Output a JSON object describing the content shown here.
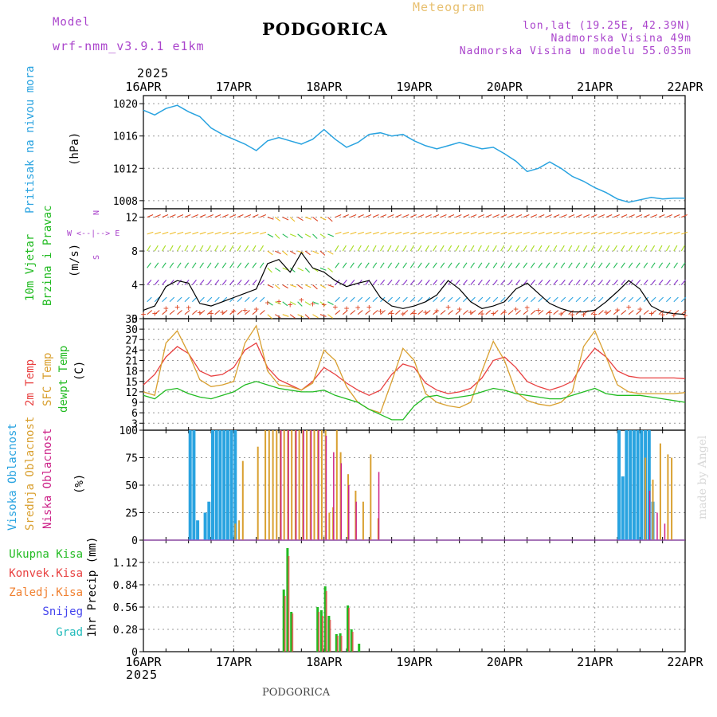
{
  "header": {
    "model_label": "Model",
    "model_name": "wrf-nmm_v3.9.1 e1km",
    "title": "PODGORICA",
    "meteogram": "Meteogram",
    "lonlat": "lon,lat (19.25E, 42.39N)",
    "elevation": "Nadmorska Visina 49m",
    "model_elevation": "Nadmorska Visina u modelu 55.035m",
    "year_top": "2025",
    "year_bottom": "2025",
    "footer_title": "PODGORICA",
    "watermark": "made by Angel"
  },
  "colors": {
    "pressure": "#29a3e0",
    "wind_label": "#22bb22",
    "temp2m": "#e84040",
    "sfc": "#d9a030",
    "dewpt": "#22bb22",
    "high_cloud": "#29a3e0",
    "mid_cloud": "#d9a030",
    "low_cloud": "#cc2288",
    "total_precip": "#22bb22",
    "conv_precip": "#e84040",
    "ice_precip": "#f08030",
    "snow": "#4444ee",
    "hail": "#22bbbb",
    "compass": "#aa44cc"
  },
  "panel_labels": {
    "pressure": [
      "Pritisak na nivou mora",
      "(hPa)"
    ],
    "wind": [
      "10m Vjetar",
      "Brzina i Pravac",
      "(m/s)"
    ],
    "compass": [
      "N",
      "W <--|--> E",
      "S"
    ],
    "temp": [
      "2m Temp",
      "SFC Temp",
      "dewpt Temp",
      "(C)"
    ],
    "cloud": [
      "Visoka Oblacnost",
      "Srednja Oblacnost",
      "Niska Oblacnost",
      "(%)"
    ],
    "precip_legend": [
      "Ukupna Kisa",
      "Konvek.Kisa",
      "Zaledj.Kisa",
      "Snijeg",
      "Grad"
    ],
    "precip_unit": "1hr Precip (mm)"
  },
  "chart_data": [
    {
      "type": "line",
      "panel": "pressure",
      "x_labels": [
        "16APR",
        "17APR",
        "18APR",
        "19APR",
        "20APR",
        "21APR",
        "22APR"
      ],
      "ylim": [
        1007,
        1021
      ],
      "yticks": [
        1008,
        1012,
        1016,
        1020
      ],
      "series": [
        {
          "name": "Pritisak na nivou mora",
          "x": [
            0,
            3,
            6,
            9,
            12,
            15,
            18,
            21,
            24,
            27,
            30,
            33,
            36,
            39,
            42,
            45,
            48,
            51,
            54,
            57,
            60,
            63,
            66,
            69,
            72,
            75,
            78,
            81,
            84,
            87,
            90,
            93,
            96,
            99,
            102,
            105,
            108,
            111,
            114,
            117,
            120,
            123,
            126,
            129,
            132,
            135,
            138,
            141,
            144
          ],
          "values": [
            1019.2,
            1018.6,
            1019.4,
            1019.8,
            1019.0,
            1018.4,
            1017.0,
            1016.2,
            1015.6,
            1015.0,
            1014.2,
            1015.4,
            1015.8,
            1015.4,
            1015.0,
            1015.6,
            1016.8,
            1015.6,
            1014.6,
            1015.2,
            1016.2,
            1016.4,
            1016.0,
            1016.2,
            1015.4,
            1014.8,
            1014.4,
            1014.8,
            1015.2,
            1014.8,
            1014.4,
            1014.6,
            1013.8,
            1012.9,
            1011.6,
            1012.0,
            1012.8,
            1012.0,
            1011.0,
            1010.4,
            1009.6,
            1009.0,
            1008.2,
            1007.8,
            1008.1,
            1008.4,
            1008.2,
            1008.3,
            1008.3
          ]
        }
      ]
    },
    {
      "type": "line",
      "panel": "wind",
      "ylim": [
        0,
        13
      ],
      "yticks": [
        0,
        4,
        8,
        12
      ],
      "series": [
        {
          "name": "10m Vjetar",
          "x": [
            0,
            3,
            6,
            9,
            12,
            15,
            18,
            21,
            24,
            27,
            30,
            33,
            36,
            39,
            42,
            45,
            48,
            51,
            54,
            57,
            60,
            63,
            66,
            69,
            72,
            75,
            78,
            81,
            84,
            87,
            90,
            93,
            96,
            99,
            102,
            105,
            108,
            111,
            114,
            117,
            120,
            123,
            126,
            129,
            132,
            135,
            138,
            141,
            144
          ],
          "values": [
            1.0,
            1.5,
            3.8,
            4.5,
            4.2,
            1.8,
            1.5,
            2.0,
            2.5,
            3.0,
            3.5,
            6.5,
            7.0,
            5.5,
            7.8,
            6.0,
            5.5,
            4.5,
            3.8,
            4.2,
            4.5,
            2.5,
            1.5,
            1.2,
            1.5,
            2.0,
            2.8,
            4.5,
            3.5,
            2.0,
            1.2,
            1.5,
            2.0,
            3.5,
            4.2,
            3.0,
            1.8,
            1.2,
            0.8,
            0.8,
            1.0,
            2.0,
            3.2,
            4.5,
            3.5,
            1.5,
            0.8,
            0.6,
            0.5
          ]
        }
      ]
    },
    {
      "type": "line",
      "panel": "temperature",
      "ylim": [
        1,
        33
      ],
      "yticks": [
        3,
        6,
        9,
        12,
        15,
        18,
        21,
        24,
        27,
        30,
        33
      ],
      "series": [
        {
          "name": "2m Temp",
          "x": [
            0,
            3,
            6,
            9,
            12,
            15,
            18,
            21,
            24,
            27,
            30,
            33,
            36,
            39,
            42,
            45,
            48,
            51,
            54,
            57,
            60,
            63,
            66,
            69,
            72,
            75,
            78,
            81,
            84,
            87,
            90,
            93,
            96,
            99,
            102,
            105,
            108,
            111,
            114,
            117,
            120,
            123,
            126,
            129,
            132,
            135,
            138,
            141,
            144
          ],
          "values": [
            14,
            17,
            22,
            25,
            23,
            18,
            16.5,
            17,
            19,
            24,
            26,
            19,
            15.5,
            14,
            12.5,
            15,
            19,
            17,
            14.5,
            12.5,
            11,
            12.5,
            17,
            20,
            19,
            14.5,
            12.5,
            11.5,
            12,
            13,
            16,
            21,
            22,
            19,
            15,
            13.5,
            12.5,
            13.5,
            15,
            20.5,
            24.5,
            22,
            18,
            16.5,
            16,
            16,
            16,
            16,
            15.8
          ]
        },
        {
          "name": "SFC Temp",
          "x": [
            0,
            3,
            6,
            9,
            12,
            15,
            18,
            21,
            24,
            27,
            30,
            33,
            36,
            39,
            42,
            45,
            48,
            51,
            54,
            57,
            60,
            63,
            66,
            69,
            72,
            75,
            78,
            81,
            84,
            87,
            90,
            93,
            96,
            99,
            102,
            105,
            108,
            111,
            114,
            117,
            120,
            123,
            126,
            129,
            132,
            135,
            138,
            141,
            144
          ],
          "values": [
            12,
            11,
            26,
            29.5,
            23,
            15.5,
            13.5,
            14,
            15,
            26,
            31,
            18,
            14,
            13.5,
            12.5,
            14.5,
            24,
            21,
            13.5,
            9,
            7,
            6,
            15,
            24.5,
            21,
            11.5,
            9,
            8,
            7.5,
            9,
            18,
            26.5,
            21,
            12,
            9.5,
            8.5,
            8,
            9,
            12,
            25,
            29.5,
            22,
            14,
            12,
            11.5,
            11.5,
            11.5,
            11.5,
            11.8
          ]
        },
        {
          "name": "dewpt Temp",
          "x": [
            0,
            3,
            6,
            9,
            12,
            15,
            18,
            21,
            24,
            27,
            30,
            33,
            36,
            39,
            42,
            45,
            48,
            51,
            54,
            57,
            60,
            63,
            66,
            69,
            72,
            75,
            78,
            81,
            84,
            87,
            90,
            93,
            96,
            99,
            102,
            105,
            108,
            111,
            114,
            117,
            120,
            123,
            126,
            129,
            132,
            135,
            138,
            141,
            144
          ],
          "values": [
            11,
            10,
            12.5,
            13,
            11.5,
            10.5,
            10,
            11,
            12,
            14,
            15,
            14,
            13,
            12.5,
            12,
            12,
            12.5,
            11,
            10,
            9,
            7,
            5.5,
            4,
            4,
            8,
            10.5,
            11,
            10,
            10.5,
            11,
            12,
            13,
            12.5,
            11.5,
            11,
            10.5,
            10,
            10,
            11,
            12,
            13,
            11.5,
            11,
            11,
            11,
            10.5,
            10,
            9.5,
            9
          ]
        }
      ]
    },
    {
      "type": "bar",
      "panel": "cloud",
      "ylim": [
        0,
        100
      ],
      "yticks": [
        0,
        25,
        50,
        75,
        100
      ],
      "series": [
        {
          "name": "Visoka Oblacnost",
          "x": [
            12,
            13,
            14,
            16,
            17,
            18,
            19,
            20,
            21,
            22,
            23,
            24,
            126,
            127,
            128,
            129,
            130,
            131,
            132,
            133,
            134,
            135
          ],
          "values": [
            100,
            100,
            18,
            25,
            35,
            100,
            100,
            100,
            100,
            100,
            100,
            100,
            100,
            58,
            100,
            100,
            100,
            100,
            100,
            100,
            100,
            35
          ]
        },
        {
          "name": "Srednja Oblacnost",
          "x": [
            24,
            25,
            26,
            30,
            32,
            33,
            34,
            35,
            36,
            37,
            38,
            39,
            40,
            41,
            42,
            43,
            44,
            45,
            46,
            47,
            48,
            49,
            50,
            51,
            52,
            54,
            56,
            58,
            60,
            62,
            133,
            135,
            137,
            139,
            140
          ],
          "values": [
            15,
            18,
            72,
            85,
            100,
            100,
            100,
            100,
            100,
            100,
            100,
            100,
            100,
            100,
            100,
            100,
            100,
            100,
            100,
            100,
            100,
            25,
            30,
            100,
            80,
            60,
            45,
            35,
            78,
            20,
            75,
            55,
            88,
            78,
            75
          ]
        },
        {
          "name": "Niska Oblacnost",
          "x": [
            36,
            38,
            40,
            42,
            44,
            46,
            48,
            50,
            52,
            54,
            56,
            58,
            62,
            64,
            66,
            67,
            69,
            134,
            136,
            138
          ],
          "values": [
            100,
            100,
            100,
            100,
            100,
            100,
            95,
            80,
            70,
            50,
            35,
            8,
            62,
            8,
            8,
            8,
            8,
            45,
            25,
            15
          ]
        }
      ]
    },
    {
      "type": "bar",
      "panel": "precip",
      "ylim": [
        0,
        1.4
      ],
      "yticks": [
        0,
        0.28,
        0.56,
        0.84,
        1.12
      ],
      "series": [
        {
          "name": "Ukupna Kisa",
          "x": [
            37,
            38,
            39,
            46,
            47,
            48,
            49,
            51,
            52,
            54,
            55,
            57
          ],
          "values": [
            0.78,
            1.3,
            0.5,
            0.56,
            0.52,
            0.82,
            0.45,
            0.22,
            0.23,
            0.58,
            0.28,
            0.1
          ]
        },
        {
          "name": "Konvek.Kisa",
          "x": [
            37,
            38,
            39,
            46,
            47,
            48,
            49,
            51,
            52,
            54,
            55
          ],
          "values": [
            0.7,
            1.2,
            0.48,
            0.5,
            0.45,
            0.76,
            0.4,
            0.2,
            0.2,
            0.55,
            0.25
          ]
        }
      ]
    }
  ]
}
